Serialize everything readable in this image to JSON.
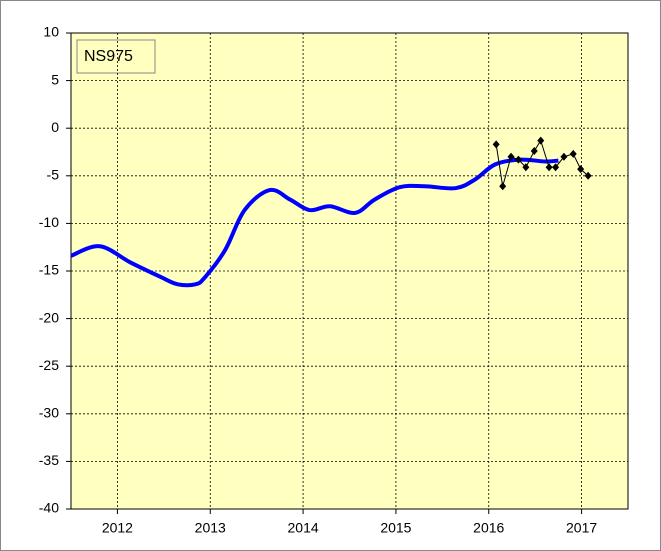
{
  "chart_data": {
    "type": "line",
    "annotation": "NS975",
    "xlim": [
      2011.5,
      2017.5
    ],
    "xticks": [
      2012,
      2013,
      2014,
      2015,
      2016,
      2017
    ],
    "ylim": [
      -40,
      10
    ],
    "yticks": [
      -40,
      -35,
      -30,
      -25,
      -20,
      -15,
      -10,
      -5,
      0,
      5,
      10
    ],
    "grid": true,
    "background": "#ffffc0",
    "series": [
      {
        "color": "#0000ff",
        "style": "smooth",
        "x": [
          2011.5,
          2011.81,
          2012.14,
          2012.46,
          2012.65,
          2012.84,
          2012.94,
          2013.16,
          2013.37,
          2013.64,
          2013.86,
          2014.07,
          2014.29,
          2014.56,
          2014.77,
          2015.04,
          2015.31,
          2015.64,
          2015.85,
          2016.07,
          2016.34,
          2016.61,
          2016.75
        ],
        "values": [
          -13.4,
          -12.4,
          -14.1,
          -15.6,
          -16.4,
          -16.4,
          -15.7,
          -12.8,
          -8.6,
          -6.5,
          -7.5,
          -8.6,
          -8.2,
          -8.9,
          -7.5,
          -6.2,
          -6.1,
          -6.3,
          -5.4,
          -3.8,
          -3.3,
          -3.5,
          -3.4
        ]
      },
      {
        "color": "#000000",
        "style": "markers",
        "x": [
          2016.08,
          2016.15,
          2016.24,
          2016.32,
          2016.4,
          2016.49,
          2016.56,
          2016.65,
          2016.72,
          2016.81,
          2016.91,
          2016.99,
          2017.07
        ],
        "values": [
          -1.7,
          -6.1,
          -3.0,
          -3.3,
          -4.1,
          -2.4,
          -1.3,
          -4.1,
          -4.1,
          -3.0,
          -2.7,
          -4.3,
          -5.0
        ]
      }
    ]
  }
}
